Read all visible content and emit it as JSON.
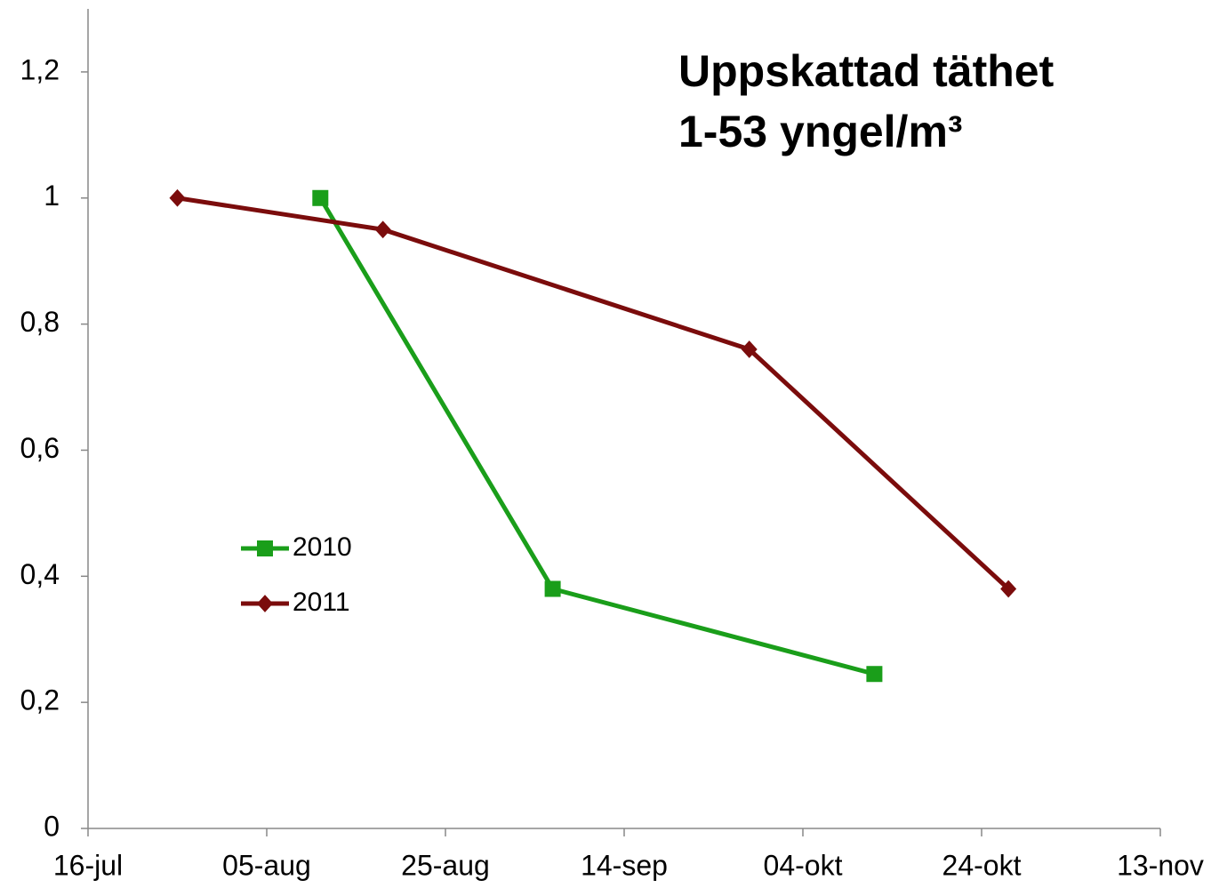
{
  "chart_data": {
    "type": "line",
    "title": "Uppskattad täthet",
    "subtitle": "1-53 yngel/m³",
    "series": [
      {
        "name": "2010",
        "color": "#1a9e1a",
        "marker": "square",
        "x": [
          "11-aug",
          "06-sep",
          "12-okt"
        ],
        "values": [
          1.0,
          0.38,
          0.245
        ]
      },
      {
        "name": "2011",
        "color": "#7b0c0c",
        "marker": "diamond",
        "x": [
          "26-jul",
          "18-aug",
          "28-sep",
          "27-okt"
        ],
        "values": [
          1.0,
          0.95,
          0.76,
          0.38
        ]
      }
    ],
    "xticks": [
      "16-jul",
      "05-aug",
      "25-aug",
      "14-sep",
      "04-okt",
      "24-okt",
      "13-nov"
    ],
    "xlim": [
      "16-jul",
      "13-nov"
    ],
    "ylim": [
      0,
      1.3
    ],
    "yticks": [
      0,
      {
        "value": 0.2,
        "label": "0,2"
      },
      {
        "value": 0.4,
        "label": "0,4"
      },
      {
        "value": 0.6,
        "label": "0,6"
      },
      {
        "value": 0.8,
        "label": "0,8"
      },
      1,
      {
        "value": 1.2,
        "label": "1,2"
      }
    ],
    "grid": false
  }
}
